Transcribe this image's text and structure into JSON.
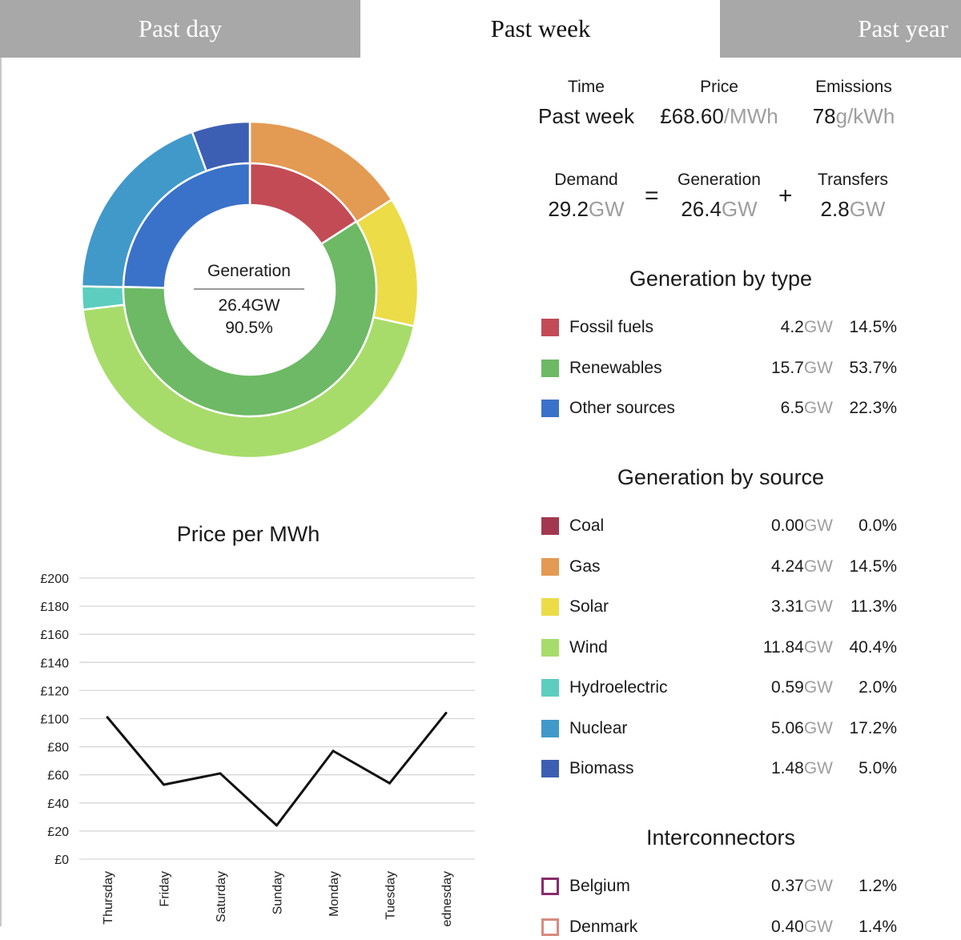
{
  "tabs": [
    {
      "label": "Past day",
      "active": false
    },
    {
      "label": "Past week",
      "active": true
    },
    {
      "label": "Past year",
      "active": false
    }
  ],
  "summary": {
    "time": {
      "label": "Time",
      "value": "Past week"
    },
    "price": {
      "label": "Price",
      "value": "£68.60",
      "unit": "/MWh"
    },
    "emissions": {
      "label": "Emissions",
      "value": "78",
      "unit": "g/kWh"
    },
    "demand": {
      "label": "Demand",
      "value": "29.2",
      "unit": "GW"
    },
    "equals": "=",
    "generation": {
      "label": "Generation",
      "value": "26.4",
      "unit": "GW"
    },
    "plus": "+",
    "transfers": {
      "label": "Transfers",
      "value": "2.8",
      "unit": "GW"
    }
  },
  "donut": {
    "center_title": "Generation",
    "center_value": "26.4GW",
    "center_pct": "90.5%"
  },
  "generation_by_type": {
    "title": "Generation by type",
    "items": [
      {
        "name": "Fossil fuels",
        "gw": "4.2",
        "unit": "GW",
        "pct": "14.5%",
        "color": "#c24b56"
      },
      {
        "name": "Renewables",
        "gw": "15.7",
        "unit": "GW",
        "pct": "53.7%",
        "color": "#6db965"
      },
      {
        "name": "Other sources",
        "gw": "6.5",
        "unit": "GW",
        "pct": "22.3%",
        "color": "#3a72c9"
      }
    ]
  },
  "generation_by_source": {
    "title": "Generation by source",
    "items": [
      {
        "name": "Coal",
        "gw": "0.00",
        "unit": "GW",
        "pct": "0.0%",
        "color": "#a2384f"
      },
      {
        "name": "Gas",
        "gw": "4.24",
        "unit": "GW",
        "pct": "14.5%",
        "color": "#e39a52"
      },
      {
        "name": "Solar",
        "gw": "3.31",
        "unit": "GW",
        "pct": "11.3%",
        "color": "#ebdc48"
      },
      {
        "name": "Wind",
        "gw": "11.84",
        "unit": "GW",
        "pct": "40.4%",
        "color": "#a8dc6a"
      },
      {
        "name": "Hydroelectric",
        "gw": "0.59",
        "unit": "GW",
        "pct": "2.0%",
        "color": "#5dcdbf"
      },
      {
        "name": "Nuclear",
        "gw": "5.06",
        "unit": "GW",
        "pct": "17.2%",
        "color": "#4199c9"
      },
      {
        "name": "Biomass",
        "gw": "1.48",
        "unit": "GW",
        "pct": "5.0%",
        "color": "#3d5fb3"
      }
    ]
  },
  "interconnectors": {
    "title": "Interconnectors",
    "items": [
      {
        "name": "Belgium",
        "gw": "0.37",
        "unit": "GW",
        "pct": "1.2%",
        "color": "#8a2b6b"
      },
      {
        "name": "Denmark",
        "gw": "0.40",
        "unit": "GW",
        "pct": "1.4%",
        "color": "#d98a7e"
      }
    ]
  },
  "chart_data": [
    {
      "type": "pie",
      "title": "",
      "series": [
        {
          "name": "Generation by source",
          "categories": [
            "Gas",
            "Solar",
            "Wind",
            "Hydroelectric",
            "Nuclear",
            "Biomass"
          ],
          "values": [
            4.24,
            3.31,
            11.84,
            0.59,
            5.06,
            1.48
          ]
        },
        {
          "name": "Generation by type",
          "categories": [
            "Fossil fuels",
            "Renewables",
            "Other sources"
          ],
          "values": [
            4.2,
            15.7,
            6.5
          ]
        }
      ]
    },
    {
      "type": "line",
      "title": "Price per MWh",
      "categories": [
        "Thursday",
        "Friday",
        "Saturday",
        "Sunday",
        "Monday",
        "Tuesday",
        "Wednesday"
      ],
      "values": [
        101,
        53,
        61,
        24,
        77,
        54,
        104
      ],
      "ylim": [
        0,
        200
      ],
      "yticks": [
        "£0",
        "£20",
        "£40",
        "£60",
        "£80",
        "£100",
        "£120",
        "£140",
        "£160",
        "£180",
        "£200"
      ],
      "grid": true
    }
  ]
}
